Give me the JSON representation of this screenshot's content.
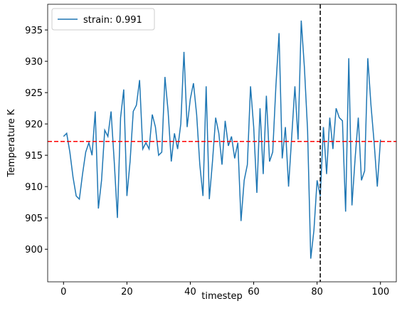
{
  "chart_data": {
    "type": "line",
    "xlabel": "timestep",
    "ylabel": "Temperature K",
    "x": [
      0,
      1,
      2,
      3,
      4,
      5,
      6,
      7,
      8,
      9,
      10,
      11,
      12,
      13,
      14,
      15,
      16,
      17,
      18,
      19,
      20,
      21,
      22,
      23,
      24,
      25,
      26,
      27,
      28,
      29,
      30,
      31,
      32,
      33,
      34,
      35,
      36,
      37,
      38,
      39,
      40,
      41,
      42,
      43,
      44,
      45,
      46,
      47,
      48,
      49,
      50,
      51,
      52,
      53,
      54,
      55,
      56,
      57,
      58,
      59,
      60,
      61,
      62,
      63,
      64,
      65,
      66,
      67,
      68,
      69,
      70,
      71,
      72,
      73,
      74,
      75,
      76,
      77,
      78,
      79,
      80,
      81,
      82,
      83,
      84,
      85,
      86,
      87,
      88,
      89,
      90,
      91,
      92,
      93,
      94,
      95,
      96,
      97,
      98,
      99,
      100
    ],
    "series": [
      {
        "name": "strain: 0.991",
        "color": "#1f77b4",
        "values": [
          918,
          918.5,
          915.5,
          911.5,
          908.5,
          908,
          912,
          915.5,
          917,
          915,
          922,
          906.5,
          911,
          919,
          918,
          922,
          914,
          905,
          921,
          925.5,
          908.5,
          914,
          922,
          923,
          927,
          916,
          917,
          916,
          921.5,
          919.5,
          915,
          915.5,
          927.5,
          922,
          914,
          918.5,
          916,
          920,
          931.5,
          919.5,
          924,
          926.5,
          921.5,
          913.5,
          908.5,
          926,
          908,
          914,
          921,
          918.5,
          913.5,
          920.5,
          916.5,
          918,
          914.5,
          917,
          904.5,
          911,
          913.5,
          926,
          919.5,
          909,
          922.5,
          912,
          924.5,
          914,
          915.5,
          926,
          934.5,
          914.5,
          919.5,
          910,
          918,
          926,
          917.5,
          936.5,
          929,
          919,
          898.5,
          903,
          911,
          908.5,
          919.5,
          912,
          921,
          916,
          922.5,
          921,
          920.5,
          906,
          930.5,
          907,
          914.5,
          921,
          911,
          912.5,
          930.5,
          923,
          917,
          910,
          917.5
        ]
      }
    ],
    "hlines": [
      {
        "value": 917.2,
        "color": "#ff0000"
      }
    ],
    "vlines": [
      {
        "value": 81,
        "color": "#000000"
      }
    ],
    "xlim": [
      -5,
      105
    ],
    "ylim": [
      894.8,
      939.1
    ],
    "xticks": [
      0,
      20,
      40,
      60,
      80,
      100
    ],
    "yticks": [
      900,
      905,
      910,
      915,
      920,
      925,
      930,
      935
    ],
    "legend": "upper left"
  }
}
